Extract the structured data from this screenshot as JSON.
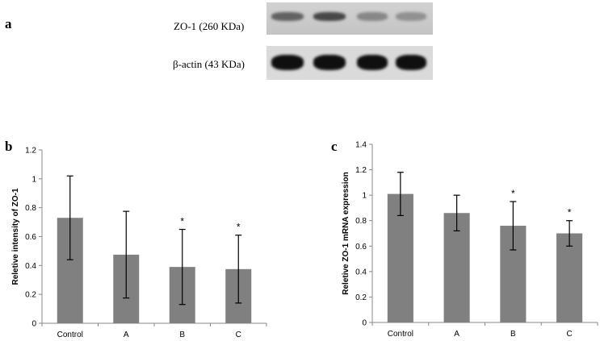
{
  "panels": {
    "a": "a",
    "b": "b",
    "c": "c"
  },
  "blot": {
    "zo1_label": "ZO-1 (260 KDa)",
    "actin_label": "β-actin (43 KDa)",
    "zo1_band_intensity": [
      0.55,
      0.7,
      0.35,
      0.3
    ],
    "actin_band_intensity": [
      1.0,
      1.0,
      1.0,
      1.0
    ]
  },
  "chart_data": [
    {
      "type": "bar",
      "panel": "b",
      "categories": [
        "Control",
        "A",
        "B",
        "C"
      ],
      "values": [
        0.73,
        0.475,
        0.39,
        0.375
      ],
      "error": [
        0.29,
        0.3,
        0.26,
        0.235
      ],
      "significance": [
        "",
        "",
        "*",
        "*"
      ],
      "ylabel": "Reletive intensity of  ZO-1",
      "ylim": [
        0,
        1.2
      ],
      "yticks": [
        0,
        0.2,
        0.4,
        0.6,
        0.8,
        1,
        1.2
      ],
      "bar_color": "#808080",
      "grid": false
    },
    {
      "type": "bar",
      "panel": "c",
      "categories": [
        "Control",
        "A",
        "B",
        "C"
      ],
      "values": [
        1.01,
        0.86,
        0.76,
        0.7
      ],
      "error": [
        0.17,
        0.14,
        0.19,
        0.1
      ],
      "significance": [
        "",
        "",
        "*",
        "*"
      ],
      "ylabel": "Reletive ZO-1 mRNA expression",
      "ylim": [
        0,
        1.4
      ],
      "yticks": [
        0,
        0.2,
        0.4,
        0.6,
        0.8,
        1,
        1.2,
        1.4
      ],
      "bar_color": "#808080",
      "grid": false
    }
  ]
}
